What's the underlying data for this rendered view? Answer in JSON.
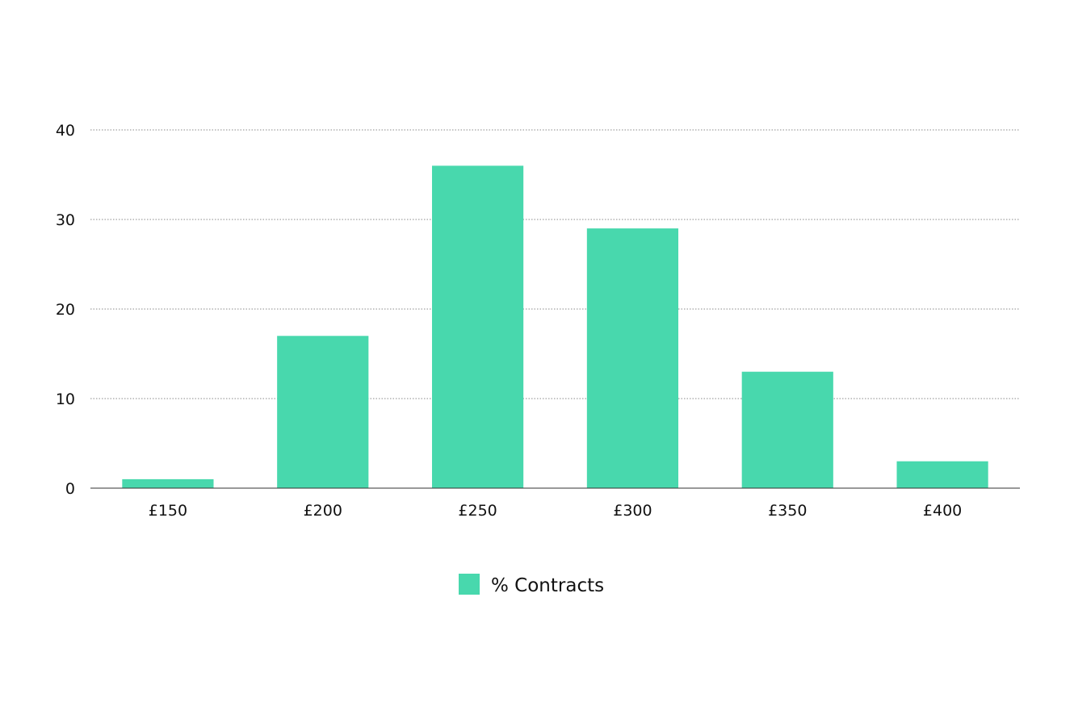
{
  "chart_data": {
    "type": "bar",
    "categories": [
      "£150",
      "£200",
      "£250",
      "£300",
      "£350",
      "£400"
    ],
    "series": [
      {
        "name": "% Contracts",
        "values": [
          1,
          17,
          36,
          29,
          13,
          3
        ],
        "color": "#48d8ad"
      }
    ],
    "ylim": [
      0,
      40
    ],
    "yticks": [
      "0",
      "10",
      "20",
      "30",
      "40"
    ],
    "grid": true,
    "legend_position": "bottom-center"
  }
}
